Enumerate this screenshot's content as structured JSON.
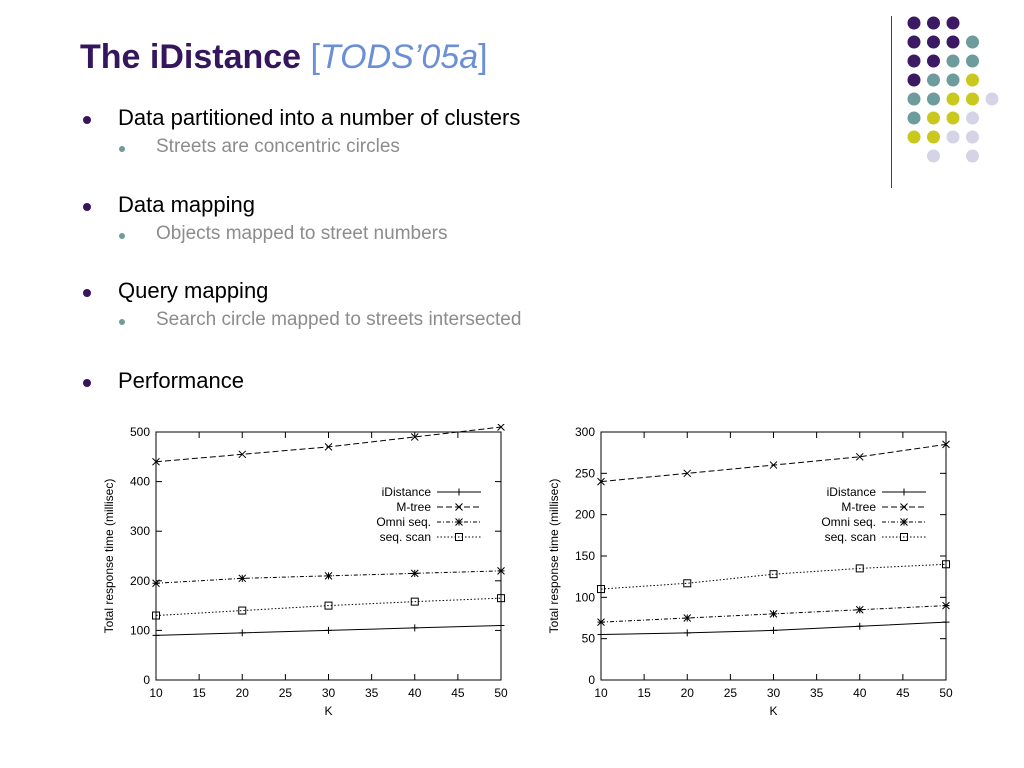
{
  "slide": {
    "title_main": "The iDistance",
    "title_bracket_open": " [",
    "title_cite": "TODS’05a",
    "title_bracket_close": "]",
    "bullets": [
      {
        "text": "Data partitioned into a number of clusters",
        "sub": "Streets are concentric circles"
      },
      {
        "text": "Data mapping",
        "sub": "Objects mapped to street numbers"
      },
      {
        "text": "Query mapping",
        "sub": "Search circle mapped to streets intersected"
      },
      {
        "text": "Performance",
        "sub": ""
      }
    ]
  },
  "decor": {
    "colors": {
      "purple": "#3b1a63",
      "teal": "#6e9b9c",
      "yellow": "#c9c81c",
      "lavender": "#d5d3e6"
    },
    "dot_grid": [
      [
        "purple",
        "purple",
        "purple",
        "none"
      ],
      [
        "purple",
        "purple",
        "purple",
        "teal"
      ],
      [
        "purple",
        "purple",
        "teal",
        "teal"
      ],
      [
        "purple",
        "teal",
        "teal",
        "yellow"
      ],
      [
        "teal",
        "teal",
        "yellow",
        "yellow",
        "lavender"
      ],
      [
        "teal",
        "yellow",
        "yellow",
        "lavender"
      ],
      [
        "yellow",
        "yellow",
        "lavender",
        "lavender"
      ],
      [
        "none",
        "lavender",
        "none",
        "lavender"
      ]
    ]
  },
  "chart_data": [
    {
      "type": "line",
      "xlabel": "K",
      "ylabel": "Total response time (millisec)",
      "xlim": [
        10,
        50
      ],
      "ylim": [
        0,
        500
      ],
      "xticks": [
        10,
        15,
        20,
        25,
        30,
        35,
        40,
        45,
        50
      ],
      "yticks": [
        0,
        100,
        200,
        300,
        400,
        500
      ],
      "x": [
        10,
        20,
        30,
        40,
        50
      ],
      "legend_position": "center-right",
      "series": [
        {
          "name": "iDistance",
          "marker": "plus",
          "dash": "solid",
          "values": [
            90,
            95,
            100,
            105,
            110
          ]
        },
        {
          "name": "M-tree",
          "marker": "x",
          "dash": "dashed",
          "values": [
            440,
            455,
            470,
            490,
            510
          ]
        },
        {
          "name": "Omni seq.",
          "marker": "star",
          "dash": "dashdot",
          "values": [
            195,
            205,
            210,
            215,
            220
          ]
        },
        {
          "name": "seq. scan",
          "marker": "square",
          "dash": "dotted",
          "values": [
            130,
            140,
            150,
            158,
            165
          ]
        }
      ]
    },
    {
      "type": "line",
      "xlabel": "K",
      "ylabel": "Total response time (millisec)",
      "xlim": [
        10,
        50
      ],
      "ylim": [
        0,
        300
      ],
      "xticks": [
        10,
        15,
        20,
        25,
        30,
        35,
        40,
        45,
        50
      ],
      "yticks": [
        0,
        50,
        100,
        150,
        200,
        250,
        300
      ],
      "x": [
        10,
        20,
        30,
        40,
        50
      ],
      "legend_position": "center-right",
      "series": [
        {
          "name": "iDistance",
          "marker": "plus",
          "dash": "solid",
          "values": [
            55,
            57,
            60,
            65,
            70
          ]
        },
        {
          "name": "M-tree",
          "marker": "x",
          "dash": "dashed",
          "values": [
            240,
            250,
            260,
            270,
            285
          ]
        },
        {
          "name": "Omni seq.",
          "marker": "star",
          "dash": "dashdot",
          "values": [
            70,
            75,
            80,
            85,
            90
          ]
        },
        {
          "name": "seq. scan",
          "marker": "square",
          "dash": "dotted",
          "values": [
            110,
            117,
            128,
            135,
            140
          ]
        }
      ]
    }
  ]
}
